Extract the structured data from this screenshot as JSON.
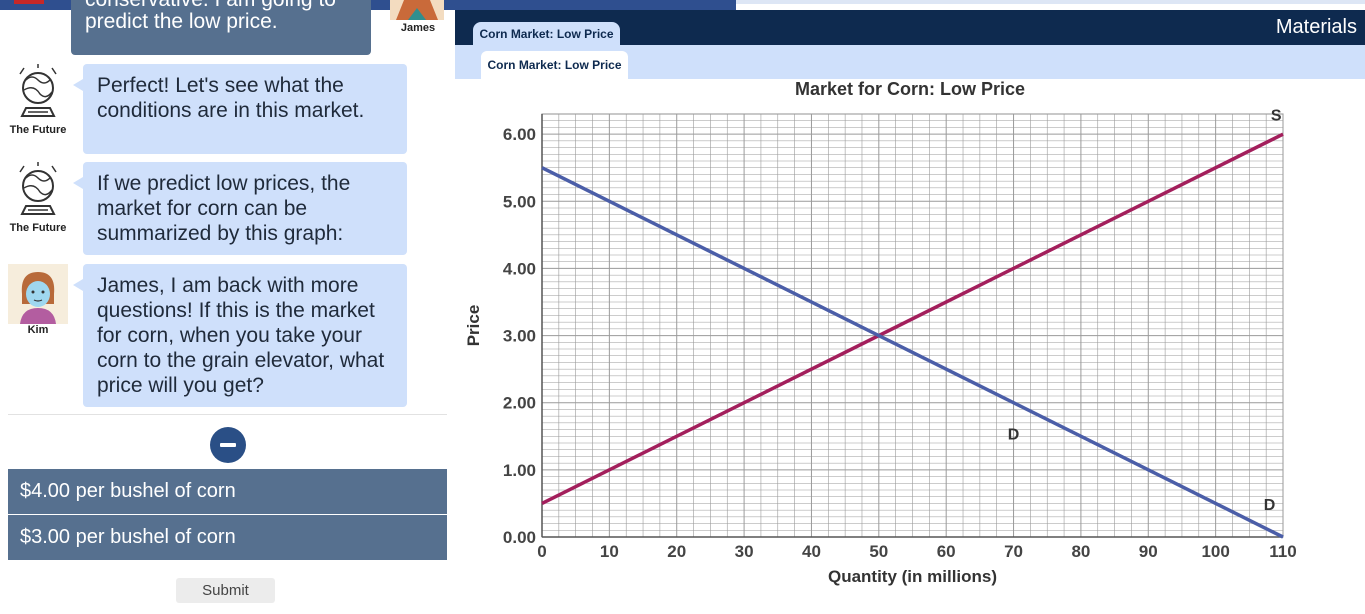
{
  "chat": {
    "prev_message_line1": "conservative. I am going to",
    "prev_message_line2": "predict the low price.",
    "prev_sender": "James",
    "messages": [
      {
        "sender": "The Future",
        "text": "Perfect! Let's see what the conditions are in this market."
      },
      {
        "sender": "The Future",
        "text": "If we predict low prices, the market for corn can be summarized by this graph:"
      },
      {
        "sender": "Kim",
        "text": "James, I am back with more questions! If this is the market for corn, when you take your corn to the grain elevator, what price will you get?"
      }
    ]
  },
  "options": [
    "$4.00 per bushel of corn",
    "$3.00 per bushel of corn"
  ],
  "submit_label": "Submit",
  "materials": {
    "title": "Materials",
    "tab_label": "Corn Market: Low Price",
    "subtab_label": "Corn Market: Low Price"
  },
  "colors": {
    "accent": "#0e2a4f",
    "option_bg": "#56708f",
    "bubble": "#cfe0fb",
    "supply": "#a31f5c",
    "demand": "#4b5ea8"
  },
  "chart_data": {
    "type": "line",
    "title": "Market for Corn: Low Price",
    "xlabel": "Quantity (in millions)",
    "ylabel": "Price",
    "xlim": [
      0,
      110
    ],
    "ylim": [
      0,
      6
    ],
    "x_ticks": [
      "0",
      "10",
      "20",
      "30",
      "40",
      "50",
      "60",
      "70",
      "80",
      "90",
      "100",
      "110"
    ],
    "y_ticks": [
      "0.00",
      "1.00",
      "2.00",
      "3.00",
      "4.00",
      "5.00",
      "6.00"
    ],
    "grid": true,
    "series": [
      {
        "name": "S",
        "x": [
          0,
          110
        ],
        "y": [
          0.5,
          6.0
        ]
      },
      {
        "name": "D",
        "x": [
          0,
          110
        ],
        "y": [
          5.5,
          0.0
        ]
      }
    ],
    "annotations": [
      {
        "text": "S",
        "x": 109,
        "y": 6.2
      },
      {
        "text": "D",
        "x": 70,
        "y": 1.45
      },
      {
        "text": "D",
        "x": 108,
        "y": 0.4
      }
    ]
  }
}
